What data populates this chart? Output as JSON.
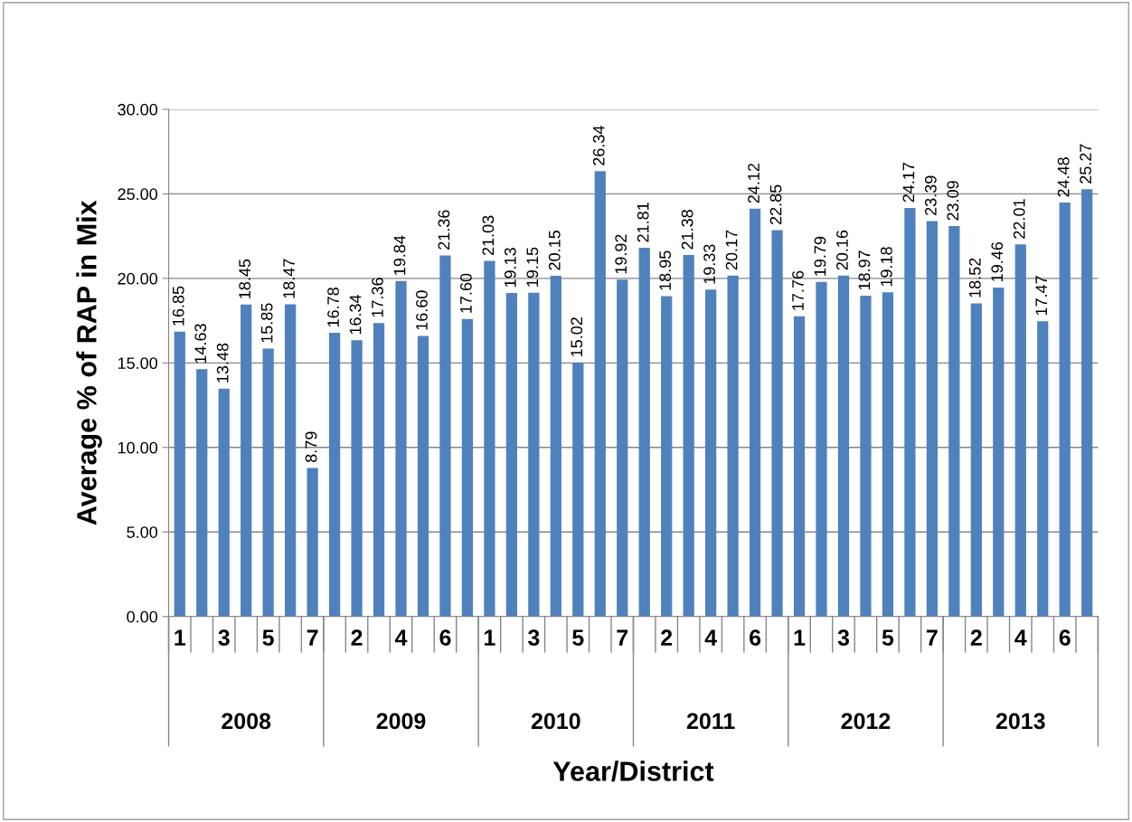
{
  "chart_data": {
    "type": "bar",
    "xlabel": "Year/District",
    "ylabel": "Average % of RAP in Mix",
    "categories": [
      "1",
      null,
      "3",
      null,
      "5",
      null,
      "7",
      null,
      "2",
      null,
      "4",
      null,
      "6",
      null,
      "1",
      null,
      "3",
      null,
      "5",
      null,
      "7",
      null,
      "2",
      null,
      "4",
      null,
      "6",
      null,
      "1",
      null,
      "3",
      null,
      "5",
      null,
      "7",
      null,
      "2",
      null,
      "4",
      null,
      "6",
      null
    ],
    "values": [
      16.85,
      14.63,
      13.48,
      18.45,
      15.85,
      18.47,
      8.79,
      16.78,
      16.34,
      17.36,
      19.84,
      16.6,
      21.36,
      17.6,
      21.03,
      19.13,
      19.15,
      20.15,
      15.02,
      26.34,
      19.92,
      21.81,
      18.95,
      21.38,
      19.33,
      20.17,
      24.12,
      22.85,
      17.76,
      19.79,
      20.16,
      18.97,
      19.18,
      24.17,
      23.39,
      23.09,
      18.52,
      19.46,
      22.01,
      17.47,
      24.48,
      25.27
    ],
    "color": "#4f81bd",
    "annotations": [
      "2008",
      "2009",
      "2010",
      "2011",
      "2012",
      "2013"
    ],
    "ylim": [
      0,
      30
    ],
    "yticks": [
      {
        "value": 0,
        "label": "0.00"
      },
      {
        "value": 5,
        "label": "5.00"
      },
      {
        "value": 10,
        "label": "10.00"
      },
      {
        "value": 15,
        "label": "15.00"
      },
      {
        "value": 20,
        "label": "20.00"
      },
      {
        "value": 25,
        "label": "25.00"
      },
      {
        "value": 30,
        "label": "30.00"
      }
    ],
    "value_labels": [
      "16.85",
      "14.63",
      "13.48",
      "18.45",
      "15.85",
      "18.47",
      "8.79",
      "16.78",
      "16.34",
      "17.36",
      "19.84",
      "16.60",
      "21.36",
      "17.60",
      "21.03",
      "19.13",
      "19.15",
      "20.15",
      "15.02",
      "26.34",
      "19.92",
      "21.81",
      "18.95",
      "21.38",
      "19.33",
      "20.17",
      "24.12",
      "22.85",
      "17.76",
      "19.79",
      "20.16",
      "18.97",
      "19.18",
      "24.17",
      "23.39",
      "23.09",
      "18.52",
      "19.46",
      "22.01",
      "17.47",
      "24.48",
      "25.27"
    ],
    "grid": "y",
    "legend": false
  }
}
